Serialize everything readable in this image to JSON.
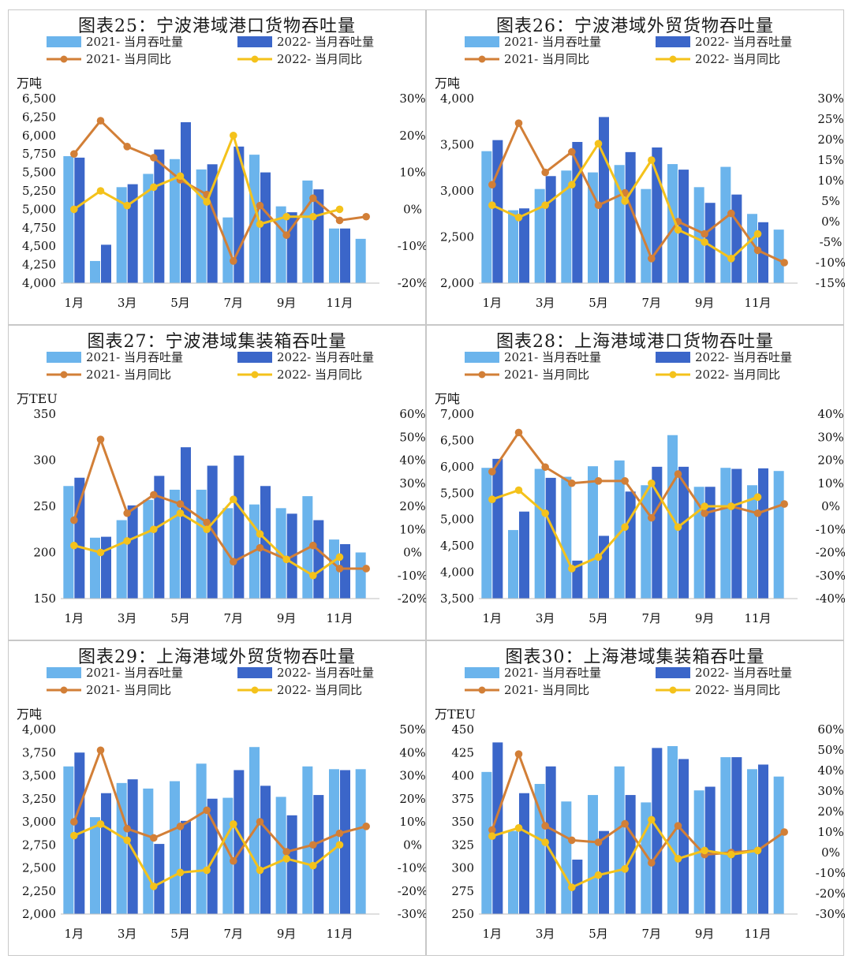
{
  "colors": {
    "bar2021": "#6bb4ec",
    "bar2022": "#3b66c9",
    "line2021": "#d27f37",
    "line2022": "#f4c21b"
  },
  "charts": [
    {
      "title": "图表25：宁波港域港口货物吞吐量",
      "unit": "万吨",
      "chart_data": {
        "type": "bar",
        "categories": [
          "1月",
          "2月",
          "3月",
          "4月",
          "5月",
          "6月",
          "7月",
          "8月",
          "9月",
          "10月",
          "11月",
          "12月"
        ],
        "x_tick_labels": [
          "1月",
          "",
          "3月",
          "",
          "5月",
          "",
          "7月",
          "",
          "9月",
          "",
          "11月",
          ""
        ],
        "y_left": {
          "min": 4000,
          "max": 6500,
          "step": 250,
          "ticks": [
            "4,000",
            "4,250",
            "4,500",
            "4,750",
            "5,000",
            "5,250",
            "5,500",
            "5,750",
            "6,000",
            "6,250",
            "6,500"
          ]
        },
        "y_right": {
          "min": -20,
          "max": 30,
          "step": 10,
          "ticks": [
            "-20%",
            "-10%",
            "0%",
            "10%",
            "20%",
            "30%"
          ]
        },
        "series": [
          {
            "name": "2021- 当月吞吐量",
            "kind": "bar",
            "values": [
              5720,
              4300,
              5300,
              5480,
              5680,
              5540,
              4890,
              5740,
              5040,
              5390,
              4740,
              4600
            ]
          },
          {
            "name": "2022- 当月吞吐量",
            "kind": "bar",
            "values": [
              5700,
              4520,
              5340,
              5810,
              6180,
              5610,
              5850,
              5500,
              4960,
              5270,
              4740,
              null
            ]
          },
          {
            "name": "2021- 当月同比",
            "kind": "line",
            "values": [
              15,
              24,
              17,
              14,
              8,
              4,
              -14,
              1,
              -7,
              3,
              -3,
              -2
            ]
          },
          {
            "name": "2022- 当月同比",
            "kind": "line",
            "values": [
              0,
              5,
              1,
              6,
              9,
              2,
              20,
              -4,
              -2,
              -2,
              0,
              null
            ]
          }
        ]
      }
    },
    {
      "title": "图表26：宁波港域外贸货物吞吐量",
      "unit": "万吨",
      "chart_data": {
        "type": "bar",
        "categories": [
          "1月",
          "2月",
          "3月",
          "4月",
          "5月",
          "6月",
          "7月",
          "8月",
          "9月",
          "10月",
          "11月",
          "12月"
        ],
        "x_tick_labels": [
          "1月",
          "",
          "3月",
          "",
          "5月",
          "",
          "7月",
          "",
          "9月",
          "",
          "11月",
          ""
        ],
        "y_left": {
          "min": 2000,
          "max": 4000,
          "step": 500,
          "ticks": [
            "2,000",
            "2,500",
            "3,000",
            "3,500",
            "4,000"
          ]
        },
        "y_right": {
          "min": -15,
          "max": 30,
          "step": 5,
          "ticks": [
            "-15%",
            "-10%",
            "-5%",
            "0%",
            "5%",
            "10%",
            "15%",
            "20%",
            "25%",
            "30%"
          ]
        },
        "series": [
          {
            "name": "2021- 当月吞吐量",
            "kind": "bar",
            "values": [
              3430,
              2790,
              3020,
              3220,
              3200,
              3280,
              3020,
              3290,
              3040,
              3260,
              2750,
              2580
            ]
          },
          {
            "name": "2022- 当月吞吐量",
            "kind": "bar",
            "values": [
              3550,
              2810,
              3160,
              3530,
              3800,
              3420,
              3470,
              3230,
              2870,
              2960,
              2660,
              null
            ]
          },
          {
            "name": "2021- 当月同比",
            "kind": "line",
            "values": [
              9,
              24,
              12,
              17,
              4,
              7,
              -9,
              0,
              -3,
              2,
              -7,
              -10
            ]
          },
          {
            "name": "2022- 当月同比",
            "kind": "line",
            "values": [
              4,
              1,
              4,
              9,
              19,
              5,
              15,
              -2,
              -5,
              -9,
              -3,
              null
            ]
          }
        ]
      }
    },
    {
      "title": "图表27：宁波港域集装箱吞吐量",
      "unit": "万TEU",
      "chart_data": {
        "type": "bar",
        "categories": [
          "1月",
          "2月",
          "3月",
          "4月",
          "5月",
          "6月",
          "7月",
          "8月",
          "9月",
          "10月",
          "11月",
          "12月"
        ],
        "x_tick_labels": [
          "1月",
          "",
          "3月",
          "",
          "5月",
          "",
          "7月",
          "",
          "9月",
          "",
          "11月",
          ""
        ],
        "y_left": {
          "min": 150,
          "max": 350,
          "step": 50,
          "ticks": [
            "150",
            "200",
            "250",
            "300",
            "350"
          ]
        },
        "y_right": {
          "min": -20,
          "max": 60,
          "step": 10,
          "ticks": [
            "-20%",
            "-10%",
            "0%",
            "10%",
            "20%",
            "30%",
            "40%",
            "50%",
            "60%"
          ]
        },
        "series": [
          {
            "name": "2021- 当月吞吐量",
            "kind": "bar",
            "values": [
              272,
              216,
              235,
              257,
              268,
              268,
              248,
              252,
              248,
              261,
              214,
              200
            ]
          },
          {
            "name": "2022- 当月吞吐量",
            "kind": "bar",
            "values": [
              281,
              217,
              251,
              283,
              314,
              294,
              305,
              272,
              242,
              235,
              209,
              null
            ]
          },
          {
            "name": "2021- 当月同比",
            "kind": "line",
            "values": [
              14,
              49,
              17,
              25,
              21,
              13,
              -4,
              2,
              -3,
              3,
              -7,
              -7
            ]
          },
          {
            "name": "2022- 当月同比",
            "kind": "line",
            "values": [
              3,
              0,
              5,
              10,
              17,
              10,
              23,
              8,
              -3,
              -10,
              -2,
              null
            ]
          }
        ]
      }
    },
    {
      "title": "图表28：上海港域港口货物吞吐量",
      "unit": "万吨",
      "chart_data": {
        "type": "bar",
        "categories": [
          "1月",
          "2月",
          "3月",
          "4月",
          "5月",
          "6月",
          "7月",
          "8月",
          "9月",
          "10月",
          "11月",
          "12月"
        ],
        "x_tick_labels": [
          "1月",
          "",
          "3月",
          "",
          "5月",
          "",
          "7月",
          "",
          "9月",
          "",
          "11月",
          ""
        ],
        "y_left": {
          "min": 3500,
          "max": 7000,
          "step": 500,
          "ticks": [
            "3,500",
            "4,000",
            "4,500",
            "5,000",
            "5,500",
            "6,000",
            "6,500",
            "7,000"
          ]
        },
        "y_right": {
          "min": -40,
          "max": 40,
          "step": 10,
          "ticks": [
            "-40%",
            "-30%",
            "-20%",
            "-10%",
            "0%",
            "10%",
            "20%",
            "30%",
            "40%"
          ]
        },
        "series": [
          {
            "name": "2021- 当月吞吐量",
            "kind": "bar",
            "values": [
              5980,
              4800,
              5960,
              5810,
              6010,
              6120,
              5650,
              6600,
              5620,
              5980,
              5650,
              5920
            ]
          },
          {
            "name": "2022- 当月吞吐量",
            "kind": "bar",
            "values": [
              6150,
              5150,
              5790,
              4220,
              4690,
              5530,
              6000,
              6000,
              5620,
              5960,
              5970,
              null
            ]
          },
          {
            "name": "2021- 当月同比",
            "kind": "line",
            "values": [
              15,
              32,
              17,
              10,
              11,
              11,
              -5,
              14,
              -3,
              0,
              -3,
              1
            ]
          },
          {
            "name": "2022- 当月同比",
            "kind": "line",
            "values": [
              3,
              7,
              -3,
              -27,
              -22,
              -9,
              10,
              -9,
              0,
              0,
              4,
              null
            ]
          }
        ]
      }
    },
    {
      "title": "图表29：上海港域外贸货物吞吐量",
      "unit": "万吨",
      "chart_data": {
        "type": "bar",
        "categories": [
          "1月",
          "2月",
          "3月",
          "4月",
          "5月",
          "6月",
          "7月",
          "8月",
          "9月",
          "10月",
          "11月",
          "12月"
        ],
        "x_tick_labels": [
          "1月",
          "",
          "3月",
          "",
          "5月",
          "",
          "7月",
          "",
          "9月",
          "",
          "11月",
          ""
        ],
        "y_left": {
          "min": 2000,
          "max": 4000,
          "step": 250,
          "ticks": [
            "2,000",
            "2,250",
            "2,500",
            "2,750",
            "3,000",
            "3,250",
            "3,500",
            "3,750",
            "4,000"
          ]
        },
        "y_right": {
          "min": -30,
          "max": 50,
          "step": 10,
          "ticks": [
            "-30%",
            "-20%",
            "-10%",
            "0%",
            "10%",
            "20%",
            "30%",
            "40%",
            "50%"
          ]
        },
        "series": [
          {
            "name": "2021- 当月吞吐量",
            "kind": "bar",
            "values": [
              3600,
              3050,
              3420,
              3360,
              3440,
              3630,
              3260,
              3810,
              3270,
              3600,
              3570,
              3570
            ]
          },
          {
            "name": "2022- 当月吞吐量",
            "kind": "bar",
            "values": [
              3750,
              3310,
              3460,
              2760,
              3010,
              3250,
              3560,
              3390,
              3070,
              3290,
              3560,
              null
            ]
          },
          {
            "name": "2021- 当月同比",
            "kind": "line",
            "values": [
              10,
              41,
              7,
              3,
              8,
              15,
              -7,
              10,
              -3,
              0,
              5,
              8
            ]
          },
          {
            "name": "2022- 当月同比",
            "kind": "line",
            "values": [
              4,
              9,
              2,
              -18,
              -12,
              -11,
              9,
              -11,
              -6,
              -9,
              0,
              null
            ]
          }
        ]
      }
    },
    {
      "title": "图表30：上海港域集装箱吞吐量",
      "unit": "万TEU",
      "chart_data": {
        "type": "bar",
        "categories": [
          "1月",
          "2月",
          "3月",
          "4月",
          "5月",
          "6月",
          "7月",
          "8月",
          "9月",
          "10月",
          "11月",
          "12月"
        ],
        "x_tick_labels": [
          "1月",
          "",
          "3月",
          "",
          "5月",
          "",
          "7月",
          "",
          "9月",
          "",
          "11月",
          ""
        ],
        "y_left": {
          "min": 250,
          "max": 450,
          "step": 25,
          "ticks": [
            "250",
            "275",
            "300",
            "325",
            "350",
            "375",
            "400",
            "425",
            "450"
          ]
        },
        "y_right": {
          "min": -30,
          "max": 60,
          "step": 10,
          "ticks": [
            "-30%",
            "-20%",
            "-10%",
            "0%",
            "10%",
            "20%",
            "30%",
            "40%",
            "50%",
            "60%"
          ]
        },
        "series": [
          {
            "name": "2021- 当月吞吐量",
            "kind": "bar",
            "values": [
              404,
              340,
              391,
              372,
              379,
              410,
              371,
              432,
              384,
              420,
              407,
              399
            ]
          },
          {
            "name": "2022- 当月吞吐量",
            "kind": "bar",
            "values": [
              436,
              381,
              410,
              309,
              340,
              379,
              430,
              418,
              388,
              420,
              412,
              null
            ]
          },
          {
            "name": "2021- 当月同比",
            "kind": "line",
            "values": [
              11,
              48,
              13,
              6,
              5,
              14,
              -5,
              13,
              -1,
              0,
              1,
              10
            ]
          },
          {
            "name": "2022- 当月同比",
            "kind": "line",
            "values": [
              8,
              12,
              5,
              -17,
              -11,
              -8,
              16,
              -3,
              1,
              -1,
              1,
              null
            ]
          }
        ]
      }
    }
  ]
}
